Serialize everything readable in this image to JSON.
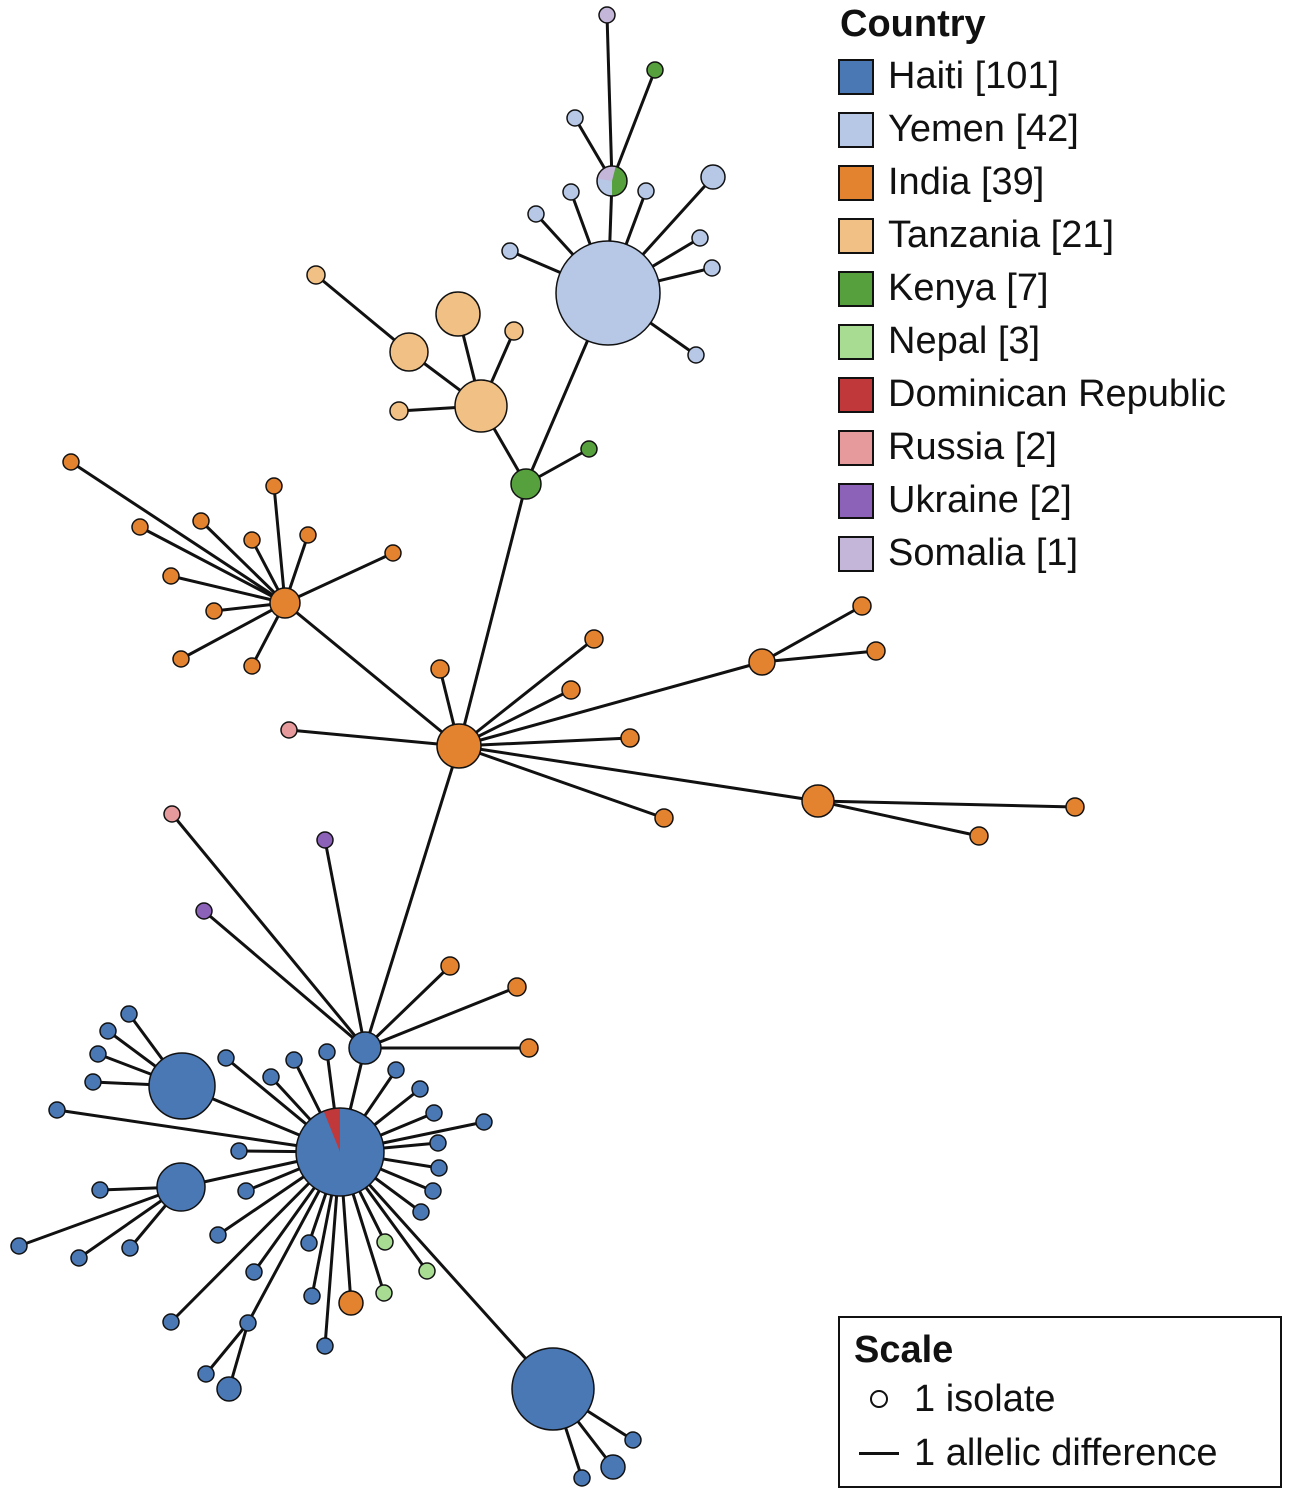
{
  "legend": {
    "title": "Country",
    "items": [
      {
        "label": "Haiti [101]",
        "color": "#4a78b5"
      },
      {
        "label": "Yemen [42]",
        "color": "#b6c8e6"
      },
      {
        "label": "India [39]",
        "color": "#e3822f"
      },
      {
        "label": "Tanzania [21]",
        "color": "#f0c085"
      },
      {
        "label": "Kenya [7]",
        "color": "#56a03e"
      },
      {
        "label": "Nepal [3]",
        "color": "#a8dc93"
      },
      {
        "label": "Dominican Republic",
        "color": "#c0383a"
      },
      {
        "label": "Russia [2]",
        "color": "#e79a9b"
      },
      {
        "label": "Ukraine [2]",
        "color": "#8b62b8"
      },
      {
        "label": "Somalia [1]",
        "color": "#c4b6d9"
      }
    ]
  },
  "scale": {
    "title": "Scale",
    "node_label": "1 isolate",
    "edge_label": "1 allelic difference"
  }
}
